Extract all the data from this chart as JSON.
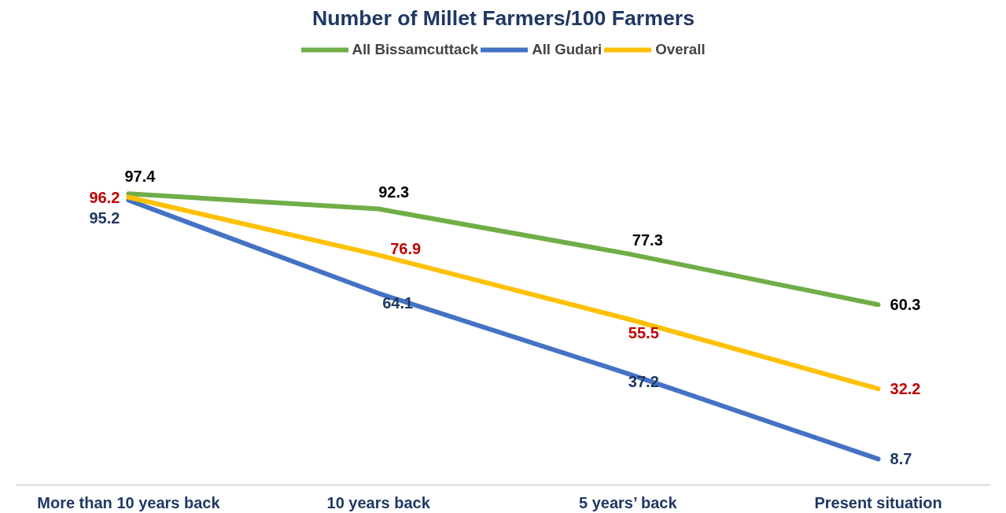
{
  "chart_data": {
    "type": "line",
    "title": "Number of Millet Farmers/100 Farmers",
    "categories": [
      "More than 10 years back",
      "10 years back",
      "5 years’ back",
      "Present situation"
    ],
    "series": [
      {
        "name": "All Bissamcuttack",
        "color": "#70ad47",
        "values": [
          97.4,
          92.3,
          77.3,
          60.3
        ]
      },
      {
        "name": "All Gudari",
        "color": "#4472c4",
        "values": [
          95.2,
          64.1,
          37.2,
          8.7
        ]
      },
      {
        "name": "Overall",
        "color": "#ffc000",
        "values": [
          96.2,
          76.9,
          55.5,
          32.2
        ]
      }
    ],
    "data_labels": true,
    "legend": "top",
    "grid": false,
    "marker": "none",
    "line_style": "solid",
    "relative": false
  }
}
